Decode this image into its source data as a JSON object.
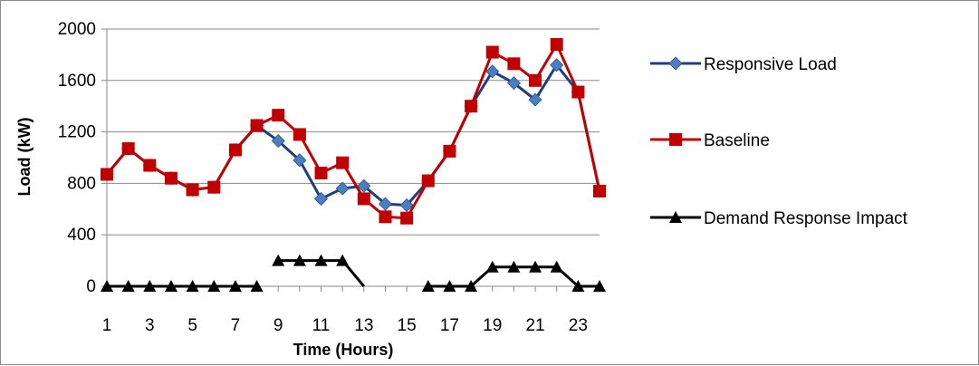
{
  "chart_data": {
    "type": "line",
    "title": "",
    "xlabel": "Time (Hours)",
    "ylabel": "Load (kW)",
    "x": [
      1,
      2,
      3,
      4,
      5,
      6,
      7,
      8,
      9,
      10,
      11,
      12,
      13,
      14,
      15,
      16,
      17,
      18,
      19,
      20,
      21,
      22,
      23,
      24
    ],
    "x_ticks": [
      "1",
      "3",
      "5",
      "7",
      "9",
      "11",
      "13",
      "15",
      "17",
      "19",
      "21",
      "23"
    ],
    "y_ticks": [
      "0",
      "400",
      "800",
      "1200",
      "1600",
      "2000"
    ],
    "ylim": [
      0,
      2000
    ],
    "grid": "horizontal major",
    "legend_position": "right",
    "series": [
      {
        "name": "Responsive Load",
        "color": "#4a7ebf",
        "line_color": "#1f3f7a",
        "marker": "diamond",
        "values": [
          870,
          1070,
          940,
          840,
          750,
          770,
          1060,
          1250,
          1130,
          980,
          680,
          760,
          780,
          640,
          630,
          820,
          1050,
          1400,
          1670,
          1580,
          1450,
          1720,
          1510,
          740
        ]
      },
      {
        "name": "Baseline",
        "color": "#c00000",
        "line_color": "#c00000",
        "marker": "square",
        "values": [
          870,
          1070,
          940,
          840,
          750,
          770,
          1060,
          1250,
          1330,
          1180,
          880,
          960,
          680,
          540,
          530,
          820,
          1050,
          1400,
          1820,
          1730,
          1600,
          1880,
          1510,
          740
        ]
      },
      {
        "name": "Demand Response Impact",
        "color": "#000000",
        "line_color": "#000000",
        "marker": "triangle",
        "segments": [
          [
            1,
            8
          ],
          [
            9,
            13
          ],
          [
            16,
            24
          ]
        ],
        "values": [
          0,
          0,
          0,
          0,
          0,
          0,
          0,
          0,
          200,
          200,
          200,
          200,
          0,
          null,
          null,
          0,
          0,
          0,
          150,
          150,
          150,
          150,
          0,
          0
        ],
        "hidden_markers": [
          13
        ]
      }
    ]
  }
}
